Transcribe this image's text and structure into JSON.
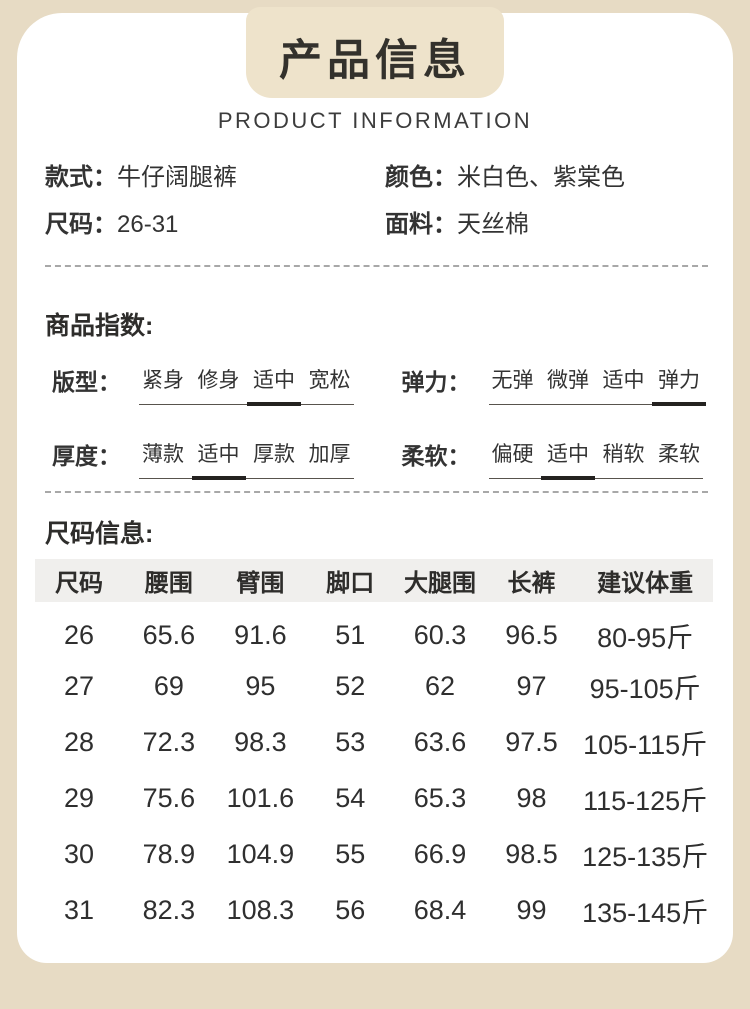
{
  "colors": {
    "background": "#e7dbc4",
    "title_box": "#eee3cb",
    "card": "#ffffff",
    "text": "#333333",
    "table_header_bg": "#f0efed",
    "selected_mark": "#242220"
  },
  "header": {
    "title": "产品信息",
    "subtitle": "PRODUCT INFORMATION"
  },
  "details": {
    "style": {
      "label": "款式：",
      "value": "牛仔阔腿裤"
    },
    "color": {
      "label": "颜色：",
      "value": "米白色、紫棠色"
    },
    "size": {
      "label": "尺码：",
      "value": "26-31"
    },
    "fabric": {
      "label": "面料：",
      "value": "天丝棉"
    }
  },
  "index_section": {
    "heading": "商品指数:",
    "groups": [
      {
        "label": "版型：",
        "options": [
          "紧身",
          "修身",
          "适中",
          "宽松"
        ],
        "selected": 2
      },
      {
        "label": "弹力：",
        "options": [
          "无弹",
          "微弹",
          "适中",
          "弹力"
        ],
        "selected": 3
      },
      {
        "label": "厚度：",
        "options": [
          "薄款",
          "适中",
          "厚款",
          "加厚"
        ],
        "selected": 1
      },
      {
        "label": "柔软：",
        "options": [
          "偏硬",
          "适中",
          "稍软",
          "柔软"
        ],
        "selected": 1
      }
    ]
  },
  "size_section": {
    "heading": "尺码信息:",
    "table": {
      "headers": [
        "尺码",
        "腰围",
        "臂围",
        "脚口",
        "大腿围",
        "长裤",
        "建议体重"
      ],
      "rows": [
        [
          "26",
          "65.6",
          "91.6",
          "51",
          "60.3",
          "96.5",
          "80-95斤"
        ],
        [
          "27",
          "69",
          "95",
          "52",
          "62",
          "97",
          "95-105斤"
        ],
        [
          "28",
          "72.3",
          "98.3",
          "53",
          "63.6",
          "97.5",
          "105-115斤"
        ],
        [
          "29",
          "75.6",
          "101.6",
          "54",
          "65.3",
          "98",
          "115-125斤"
        ],
        [
          "30",
          "78.9",
          "104.9",
          "55",
          "66.9",
          "98.5",
          "125-135斤"
        ],
        [
          "31",
          "82.3",
          "108.3",
          "56",
          "68.4",
          "99",
          "135-145斤"
        ]
      ]
    }
  }
}
